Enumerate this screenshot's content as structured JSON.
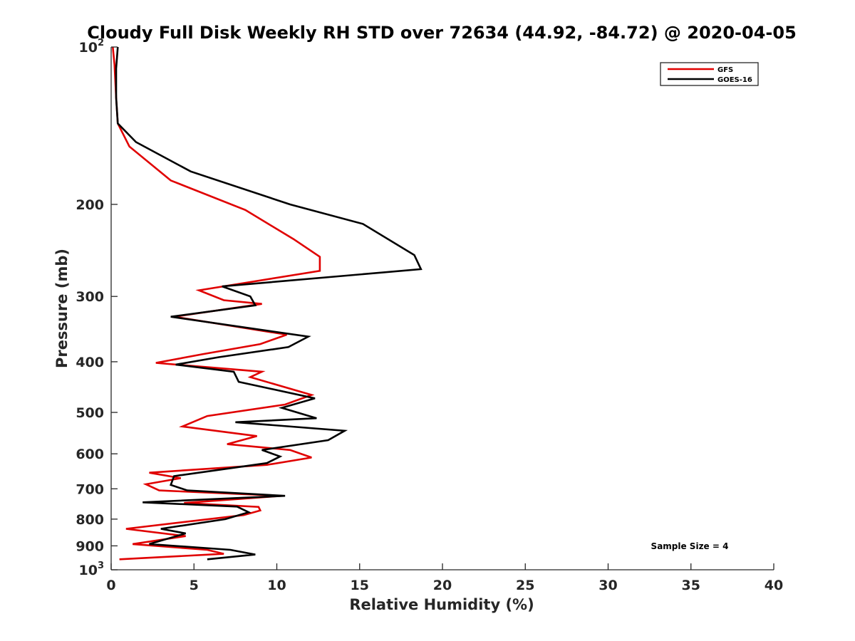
{
  "chart_data": {
    "type": "line",
    "title": "Cloudy Full Disk Weekly RH STD over 72634 (44.92, -84.72) @ 2020-04-05",
    "xlabel": "Relative Humidity (%)",
    "ylabel": "Pressure (mb)",
    "xlim": [
      0,
      40
    ],
    "ylim": [
      100,
      1000
    ],
    "yscale": "log",
    "y_reversed": true,
    "grid": false,
    "legend_position": "top-right",
    "x_ticks": [
      "0",
      "5",
      "10",
      "15",
      "20",
      "25",
      "30",
      "35",
      "40"
    ],
    "y_ticks": [
      {
        "value": 100,
        "base": "10",
        "exp": "2"
      },
      {
        "value": 200,
        "label": "200"
      },
      {
        "value": 300,
        "label": "300"
      },
      {
        "value": 400,
        "label": "400"
      },
      {
        "value": 500,
        "label": "500"
      },
      {
        "value": 600,
        "label": "600"
      },
      {
        "value": 700,
        "label": "700"
      },
      {
        "value": 800,
        "label": "800"
      },
      {
        "value": 900,
        "label": "900"
      },
      {
        "value": 1000,
        "base": "10",
        "exp": "3"
      }
    ],
    "annotation": "Sample Size = 4",
    "series": [
      {
        "name": "GFS",
        "color": "#e00000",
        "points": [
          [
            0.1,
            100
          ],
          [
            0.2,
            108
          ],
          [
            0.3,
            125
          ],
          [
            0.4,
            140
          ],
          [
            1.1,
            155
          ],
          [
            3.6,
            180
          ],
          [
            8.1,
            205
          ],
          [
            11.0,
            233
          ],
          [
            12.6,
            252
          ],
          [
            12.6,
            268
          ],
          [
            5.3,
            292
          ],
          [
            6.8,
            305
          ],
          [
            9.1,
            310
          ],
          [
            3.8,
            328
          ],
          [
            10.6,
            355
          ],
          [
            9.0,
            370
          ],
          [
            5.5,
            387
          ],
          [
            2.7,
            402
          ],
          [
            9.1,
            418
          ],
          [
            8.4,
            428
          ],
          [
            12.1,
            463
          ],
          [
            10.5,
            483
          ],
          [
            5.8,
            508
          ],
          [
            4.3,
            532
          ],
          [
            8.8,
            555
          ],
          [
            7.0,
            575
          ],
          [
            10.8,
            590
          ],
          [
            12.1,
            610
          ],
          [
            9.4,
            630
          ],
          [
            2.3,
            652
          ],
          [
            4.2,
            668
          ],
          [
            2.1,
            686
          ],
          [
            2.9,
            705
          ],
          [
            10.3,
            722
          ],
          [
            4.4,
            745
          ],
          [
            8.9,
            758
          ],
          [
            9.0,
            770
          ],
          [
            8.0,
            786
          ],
          [
            0.9,
            835
          ],
          [
            4.5,
            862
          ],
          [
            1.3,
            893
          ],
          [
            5.8,
            916
          ],
          [
            6.8,
            932
          ],
          [
            0.5,
            955
          ]
        ]
      },
      {
        "name": "GOES-16",
        "color": "#000000",
        "points": [
          [
            0.4,
            100
          ],
          [
            0.3,
            110
          ],
          [
            0.3,
            125
          ],
          [
            0.4,
            140
          ],
          [
            1.5,
            152
          ],
          [
            4.8,
            173
          ],
          [
            10.8,
            200
          ],
          [
            15.2,
            218
          ],
          [
            18.3,
            250
          ],
          [
            18.7,
            266
          ],
          [
            6.7,
            287
          ],
          [
            8.4,
            300
          ],
          [
            8.7,
            312
          ],
          [
            3.6,
            328
          ],
          [
            11.9,
            358
          ],
          [
            10.7,
            375
          ],
          [
            6.5,
            392
          ],
          [
            3.9,
            405
          ],
          [
            7.4,
            418
          ],
          [
            7.7,
            437
          ],
          [
            12.3,
            470
          ],
          [
            10.3,
            490
          ],
          [
            12.4,
            513
          ],
          [
            7.5,
            522
          ],
          [
            14.1,
            542
          ],
          [
            13.1,
            565
          ],
          [
            9.1,
            590
          ],
          [
            10.2,
            607
          ],
          [
            9.4,
            625
          ],
          [
            3.8,
            662
          ],
          [
            3.6,
            688
          ],
          [
            4.6,
            705
          ],
          [
            10.5,
            722
          ],
          [
            1.9,
            743
          ],
          [
            7.6,
            757
          ],
          [
            8.3,
            776
          ],
          [
            6.9,
            800
          ],
          [
            3.0,
            835
          ],
          [
            4.5,
            852
          ],
          [
            2.3,
            893
          ],
          [
            7.2,
            916
          ],
          [
            8.7,
            935
          ],
          [
            5.8,
            955
          ]
        ]
      }
    ]
  }
}
